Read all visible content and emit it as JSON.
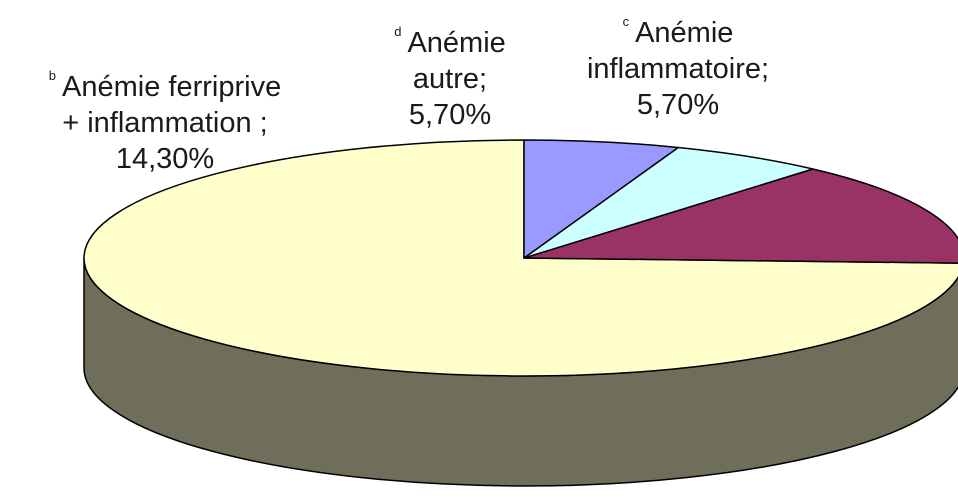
{
  "chart_data": {
    "type": "pie",
    "style": "3d",
    "slices": [
      {
        "marker": "",
        "label": "",
        "value": 74.3,
        "value_text": "",
        "color": "#FFFFCC"
      },
      {
        "marker": "b",
        "label": "Anémie ferriprive + inflammation ;",
        "value": 14.3,
        "value_text": "14,30%",
        "color": "#993366"
      },
      {
        "marker": "d",
        "label": "Anémie autre;",
        "value": 5.7,
        "value_text": "5,70%",
        "color": "#CCFFFF"
      },
      {
        "marker": "c",
        "label": "Anémie inflammatoire;",
        "value": 5.7,
        "value_text": "5,70%",
        "color": "#9999FF"
      }
    ],
    "labels": {
      "b": {
        "line1": "Anémie ferriprive",
        "line2": "+ inflammation ;",
        "line3": "14,30%"
      },
      "d": {
        "line1": "Anémie",
        "line2": "autre;",
        "line3": "5,70%"
      },
      "c": {
        "line1": "Anémie",
        "line2": "inflammatoire;",
        "line3": "5,70%"
      }
    },
    "side_color": "#6E6E5A",
    "legend": "none"
  }
}
